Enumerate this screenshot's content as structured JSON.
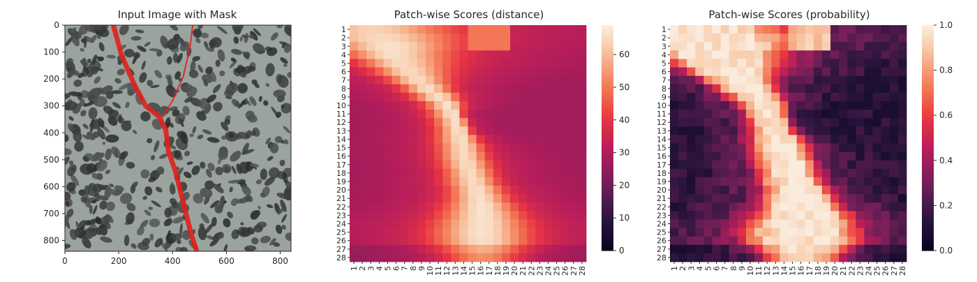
{
  "chart_data": [
    {
      "type": "image",
      "title": "Input Image with Mask",
      "xticks": [
        0,
        200,
        400,
        600,
        800
      ],
      "yticks": [
        0,
        100,
        200,
        300,
        400,
        500,
        600,
        700,
        800
      ],
      "xlim": [
        0,
        840
      ],
      "ylim": [
        840,
        0
      ],
      "mask_color": "#e0201c",
      "background_color": "#9aa39d",
      "crack_main": [
        [
          180,
          0
        ],
        [
          210,
          110
        ],
        [
          255,
          215
        ],
        [
          300,
          300
        ],
        [
          350,
          340
        ],
        [
          375,
          390
        ],
        [
          385,
          470
        ],
        [
          410,
          540
        ],
        [
          430,
          620
        ],
        [
          450,
          700
        ],
        [
          470,
          780
        ],
        [
          490,
          840
        ]
      ],
      "crack_branch": [
        [
          475,
          0
        ],
        [
          465,
          80
        ],
        [
          440,
          190
        ],
        [
          400,
          280
        ],
        [
          365,
          340
        ]
      ]
    },
    {
      "type": "heatmap",
      "title": "Patch-wise Scores (distance)",
      "x_categories": [
        "1",
        "2",
        "3",
        "4",
        "5",
        "6",
        "7",
        "8",
        "9",
        "10",
        "11",
        "12",
        "13",
        "14",
        "15",
        "16",
        "17",
        "18",
        "19",
        "20",
        "21",
        "22",
        "23",
        "24",
        "25",
        "26",
        "27",
        "28"
      ],
      "y_categories": [
        "1",
        "2",
        "3",
        "4",
        "5",
        "6",
        "7",
        "8",
        "9",
        "10",
        "11",
        "12",
        "13",
        "14",
        "15",
        "16",
        "17",
        "18",
        "19",
        "20",
        "21",
        "22",
        "23",
        "24",
        "25",
        "26",
        "27",
        "28"
      ],
      "colorbar_ticks": [
        0,
        10,
        20,
        30,
        40,
        50,
        60
      ],
      "vmin": 0,
      "vmax": 69,
      "colormap": "rocket",
      "background": 28,
      "shape": [
        [
          1,
          3.2,
          5.4,
          6.2,
          0.9
        ],
        [
          2,
          4.2,
          5.6,
          6.0,
          0.95
        ],
        [
          3,
          5.2,
          4.6,
          5.2,
          1.0
        ],
        [
          4,
          5.6,
          3.6,
          4.6,
          0.98
        ],
        [
          5,
          6.5,
          3.0,
          4.0,
          0.95
        ],
        [
          6,
          7.5,
          2.6,
          3.2,
          0.95
        ],
        [
          7,
          8.5,
          2.2,
          2.5,
          0.95
        ],
        [
          8,
          9.8,
          2.0,
          1.8,
          0.97
        ],
        [
          9,
          11.1,
          2.0,
          1.5,
          0.98
        ],
        [
          10,
          12.2,
          1.8,
          1.1,
          1.0
        ],
        [
          11,
          12.8,
          1.8,
          0.7,
          1.0
        ],
        [
          12,
          13.3,
          1.8,
          0.7,
          1.0
        ],
        [
          13,
          13.6,
          1.8,
          0.8,
          1.0
        ],
        [
          14,
          13.8,
          2.0,
          1.2,
          0.97
        ],
        [
          15,
          14.0,
          2.0,
          1.5,
          0.95
        ],
        [
          16,
          14.1,
          2.0,
          1.7,
          0.95
        ],
        [
          17,
          14.4,
          2.0,
          1.8,
          0.95
        ],
        [
          18,
          14.8,
          2.0,
          1.8,
          0.95
        ],
        [
          19,
          15.2,
          2.2,
          1.8,
          0.95
        ],
        [
          20,
          15.6,
          2.2,
          2.0,
          0.97
        ],
        [
          21,
          15.9,
          2.4,
          2.2,
          0.98
        ],
        [
          22,
          16.1,
          2.8,
          2.6,
          1.0
        ],
        [
          23,
          16.2,
          3.2,
          3.0,
          1.0
        ],
        [
          24,
          16.2,
          3.6,
          3.4,
          1.0
        ],
        [
          25,
          16.2,
          3.8,
          3.6,
          1.0
        ],
        [
          26,
          16.3,
          3.8,
          3.6,
          0.98
        ],
        [
          27,
          16.3,
          3.6,
          3.4,
          0.85
        ],
        [
          28,
          16.3,
          3.2,
          3.0,
          0.7
        ]
      ]
    },
    {
      "type": "heatmap",
      "title": "Patch-wise Scores (probability)",
      "x_categories": [
        "1",
        "2",
        "3",
        "4",
        "5",
        "6",
        "7",
        "8",
        "9",
        "10",
        "11",
        "12",
        "13",
        "14",
        "15",
        "16",
        "17",
        "18",
        "19",
        "20",
        "21",
        "22",
        "23",
        "24",
        "25",
        "26",
        "27",
        "28"
      ],
      "y_categories": [
        "1",
        "2",
        "3",
        "4",
        "5",
        "6",
        "7",
        "8",
        "9",
        "10",
        "11",
        "12",
        "13",
        "14",
        "15",
        "16",
        "17",
        "18",
        "19",
        "20",
        "21",
        "22",
        "23",
        "24",
        "25",
        "26",
        "27",
        "28"
      ],
      "colorbar_ticks": [
        "0.0",
        "0.2",
        "0.4",
        "0.6",
        "0.8",
        "1.0"
      ],
      "vmin": 0,
      "vmax": 1,
      "colormap": "rocket",
      "background": 0.05
    }
  ]
}
